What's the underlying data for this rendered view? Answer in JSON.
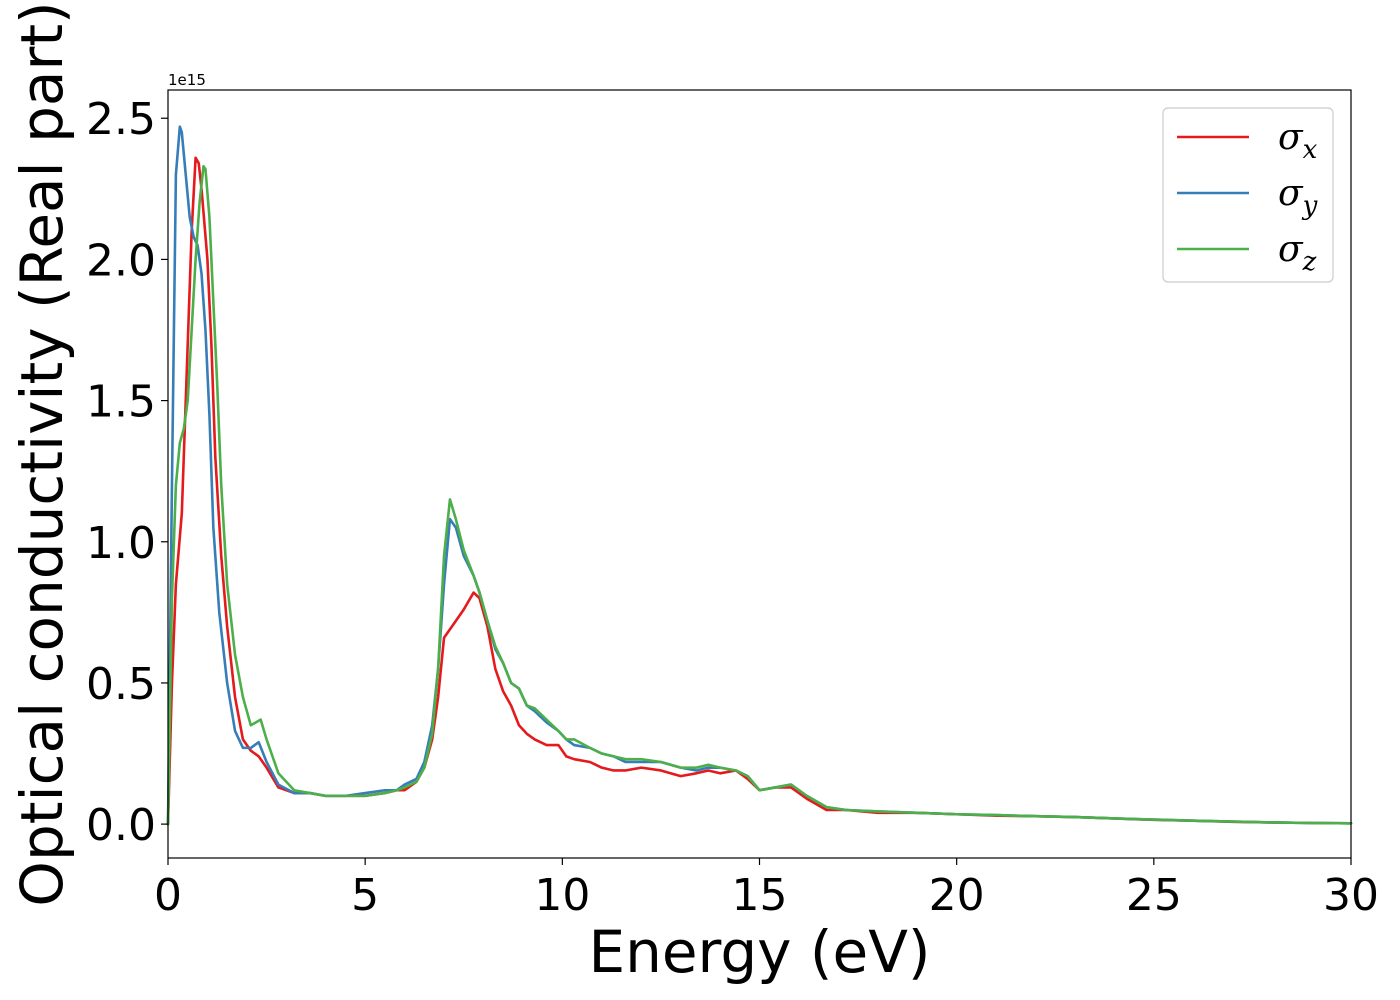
{
  "chart_data": {
    "type": "line",
    "xlabel": "Energy (eV)",
    "ylabel": "Optical conductivity (Real part)",
    "y_offset_label": "1e15",
    "xlim": [
      0,
      30
    ],
    "ylim": [
      -0.12,
      2.6
    ],
    "y_scale_factor": 1000000000000000.0,
    "x_ticks": [
      0,
      5,
      10,
      15,
      20,
      25,
      30
    ],
    "x_tick_labels": [
      "0",
      "5",
      "10",
      "15",
      "20",
      "25",
      "30"
    ],
    "y_ticks": [
      0.0,
      0.5,
      1.0,
      1.5,
      2.0,
      2.5
    ],
    "y_tick_labels": [
      "0.0",
      "0.5",
      "1.0",
      "1.5",
      "2.0",
      "2.5"
    ],
    "grid": false,
    "legend_position": "top-right",
    "series": [
      {
        "name": "σx",
        "legend_symbol": "σ",
        "legend_subscript": "x",
        "color": "#e41a1c",
        "x": [
          0,
          0.1,
          0.2,
          0.35,
          0.5,
          0.6,
          0.7,
          0.78,
          0.85,
          1.0,
          1.1,
          1.2,
          1.35,
          1.5,
          1.7,
          1.9,
          2.1,
          2.3,
          2.5,
          2.8,
          3.2,
          3.6,
          4.0,
          4.5,
          5.0,
          5.5,
          5.8,
          6.0,
          6.3,
          6.5,
          6.7,
          6.85,
          7.0,
          7.3,
          7.5,
          7.75,
          7.9,
          8.1,
          8.3,
          8.5,
          8.7,
          8.9,
          9.1,
          9.3,
          9.6,
          9.9,
          10.1,
          10.3,
          10.7,
          11.0,
          11.3,
          11.6,
          12.0,
          12.5,
          13.0,
          13.4,
          13.7,
          14.0,
          14.4,
          14.7,
          15.0,
          15.4,
          15.8,
          16.2,
          16.7,
          17.2,
          18.0,
          19.0,
          20.0,
          21.0,
          22.0,
          23.0,
          24.0,
          25.0,
          26.0,
          27.0,
          28.0,
          29.0,
          30.0
        ],
        "y": [
          0.0,
          0.5,
          0.85,
          1.1,
          1.7,
          2.1,
          2.36,
          2.34,
          2.25,
          2.0,
          1.7,
          1.3,
          0.95,
          0.7,
          0.45,
          0.3,
          0.26,
          0.24,
          0.2,
          0.13,
          0.11,
          0.11,
          0.1,
          0.1,
          0.1,
          0.11,
          0.12,
          0.12,
          0.15,
          0.2,
          0.3,
          0.45,
          0.66,
          0.72,
          0.76,
          0.82,
          0.8,
          0.7,
          0.55,
          0.47,
          0.42,
          0.35,
          0.32,
          0.3,
          0.28,
          0.28,
          0.24,
          0.23,
          0.22,
          0.2,
          0.19,
          0.19,
          0.2,
          0.19,
          0.17,
          0.18,
          0.19,
          0.18,
          0.19,
          0.16,
          0.12,
          0.13,
          0.13,
          0.09,
          0.05,
          0.05,
          0.04,
          0.04,
          0.035,
          0.03,
          0.028,
          0.025,
          0.02,
          0.015,
          0.012,
          0.008,
          0.006,
          0.004,
          0.003
        ]
      },
      {
        "name": "σy",
        "legend_symbol": "σ",
        "legend_subscript": "y",
        "color": "#377eb8",
        "x": [
          0,
          0.1,
          0.2,
          0.3,
          0.35,
          0.45,
          0.55,
          0.65,
          0.75,
          0.85,
          0.95,
          1.05,
          1.15,
          1.3,
          1.5,
          1.7,
          1.9,
          2.1,
          2.3,
          2.5,
          2.8,
          3.2,
          3.6,
          4.0,
          4.5,
          5.0,
          5.5,
          5.8,
          6.0,
          6.3,
          6.5,
          6.7,
          6.85,
          7.0,
          7.15,
          7.3,
          7.5,
          7.75,
          7.9,
          8.1,
          8.3,
          8.5,
          8.7,
          8.9,
          9.1,
          9.3,
          9.6,
          9.9,
          10.1,
          10.3,
          10.7,
          11.0,
          11.3,
          11.6,
          12.0,
          12.5,
          13.0,
          13.4,
          13.7,
          14.0,
          14.4,
          14.7,
          15.0,
          15.4,
          15.8,
          16.2,
          16.7,
          17.2,
          18.0,
          19.0,
          20.0,
          21.0,
          22.0,
          23.0,
          24.0,
          25.0,
          26.0,
          27.0,
          28.0,
          29.0,
          30.0
        ],
        "y": [
          0.0,
          1.2,
          2.3,
          2.47,
          2.45,
          2.3,
          2.15,
          2.08,
          2.05,
          1.95,
          1.75,
          1.45,
          1.05,
          0.75,
          0.5,
          0.33,
          0.27,
          0.27,
          0.29,
          0.22,
          0.14,
          0.11,
          0.11,
          0.1,
          0.1,
          0.11,
          0.12,
          0.12,
          0.14,
          0.16,
          0.22,
          0.35,
          0.55,
          0.85,
          1.08,
          1.05,
          0.95,
          0.88,
          0.82,
          0.72,
          0.62,
          0.57,
          0.5,
          0.48,
          0.42,
          0.4,
          0.36,
          0.33,
          0.3,
          0.28,
          0.27,
          0.25,
          0.24,
          0.22,
          0.22,
          0.22,
          0.2,
          0.19,
          0.2,
          0.2,
          0.19,
          0.17,
          0.12,
          0.13,
          0.14,
          0.1,
          0.06,
          0.05,
          0.045,
          0.04,
          0.035,
          0.032,
          0.028,
          0.025,
          0.02,
          0.016,
          0.012,
          0.009,
          0.006,
          0.004,
          0.003
        ]
      },
      {
        "name": "σz",
        "legend_symbol": "σ",
        "legend_subscript": "z",
        "color": "#4daf4a",
        "x": [
          0,
          0.1,
          0.2,
          0.3,
          0.4,
          0.5,
          0.6,
          0.7,
          0.8,
          0.9,
          0.95,
          1.05,
          1.15,
          1.25,
          1.35,
          1.5,
          1.7,
          1.9,
          2.1,
          2.35,
          2.5,
          2.8,
          3.2,
          3.6,
          4.0,
          4.5,
          5.0,
          5.5,
          5.8,
          6.0,
          6.3,
          6.5,
          6.7,
          6.85,
          7.0,
          7.15,
          7.3,
          7.5,
          7.75,
          7.9,
          8.1,
          8.3,
          8.5,
          8.7,
          8.9,
          9.1,
          9.3,
          9.6,
          9.9,
          10.1,
          10.3,
          10.7,
          11.0,
          11.3,
          11.6,
          12.0,
          12.5,
          13.0,
          13.4,
          13.7,
          14.0,
          14.4,
          14.7,
          15.0,
          15.4,
          15.8,
          16.2,
          16.7,
          17.2,
          18.0,
          19.0,
          20.0,
          21.0,
          22.0,
          23.0,
          24.0,
          25.0,
          26.0,
          27.0,
          28.0,
          29.0,
          30.0
        ],
        "y": [
          0.0,
          0.8,
          1.2,
          1.35,
          1.4,
          1.5,
          1.75,
          2.0,
          2.2,
          2.33,
          2.32,
          2.15,
          1.85,
          1.55,
          1.2,
          0.85,
          0.6,
          0.45,
          0.35,
          0.37,
          0.3,
          0.18,
          0.12,
          0.11,
          0.1,
          0.1,
          0.1,
          0.11,
          0.12,
          0.13,
          0.15,
          0.2,
          0.32,
          0.55,
          0.95,
          1.15,
          1.08,
          0.97,
          0.88,
          0.82,
          0.72,
          0.63,
          0.57,
          0.5,
          0.48,
          0.42,
          0.41,
          0.37,
          0.33,
          0.3,
          0.3,
          0.27,
          0.25,
          0.24,
          0.23,
          0.23,
          0.22,
          0.2,
          0.2,
          0.21,
          0.2,
          0.19,
          0.17,
          0.12,
          0.13,
          0.14,
          0.1,
          0.06,
          0.05,
          0.045,
          0.04,
          0.035,
          0.032,
          0.028,
          0.025,
          0.02,
          0.016,
          0.012,
          0.009,
          0.006,
          0.004,
          0.003
        ]
      }
    ]
  }
}
